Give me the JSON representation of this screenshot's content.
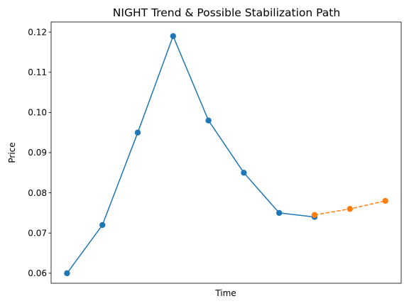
{
  "chart_data": {
    "type": "line",
    "title": "NIGHT Trend & Possible Stabilization Path",
    "xlabel": "Time",
    "ylabel": "Price",
    "ylim": [
      0.0575,
      0.1225
    ],
    "xlim": [
      -0.45,
      9.45
    ],
    "yticks": [
      0.06,
      0.07,
      0.08,
      0.09,
      0.1,
      0.11,
      0.12
    ],
    "ytick_labels": [
      "0.06",
      "0.07",
      "0.08",
      "0.09",
      "0.10",
      "0.11",
      "0.12"
    ],
    "x_ticks_visible": false,
    "grid": false,
    "legend": false,
    "series": [
      {
        "color": "#1f77b4",
        "linestyle": "solid",
        "marker": "circle",
        "x": [
          0,
          1,
          2,
          3,
          4,
          5,
          6,
          7
        ],
        "values": [
          0.06,
          0.072,
          0.095,
          0.119,
          0.098,
          0.085,
          0.075,
          0.074
        ]
      },
      {
        "color": "#ff7f0e",
        "linestyle": "dashed",
        "marker": "circle",
        "x": [
          7,
          8,
          9
        ],
        "values": [
          0.0745,
          0.076,
          0.078
        ]
      }
    ]
  }
}
